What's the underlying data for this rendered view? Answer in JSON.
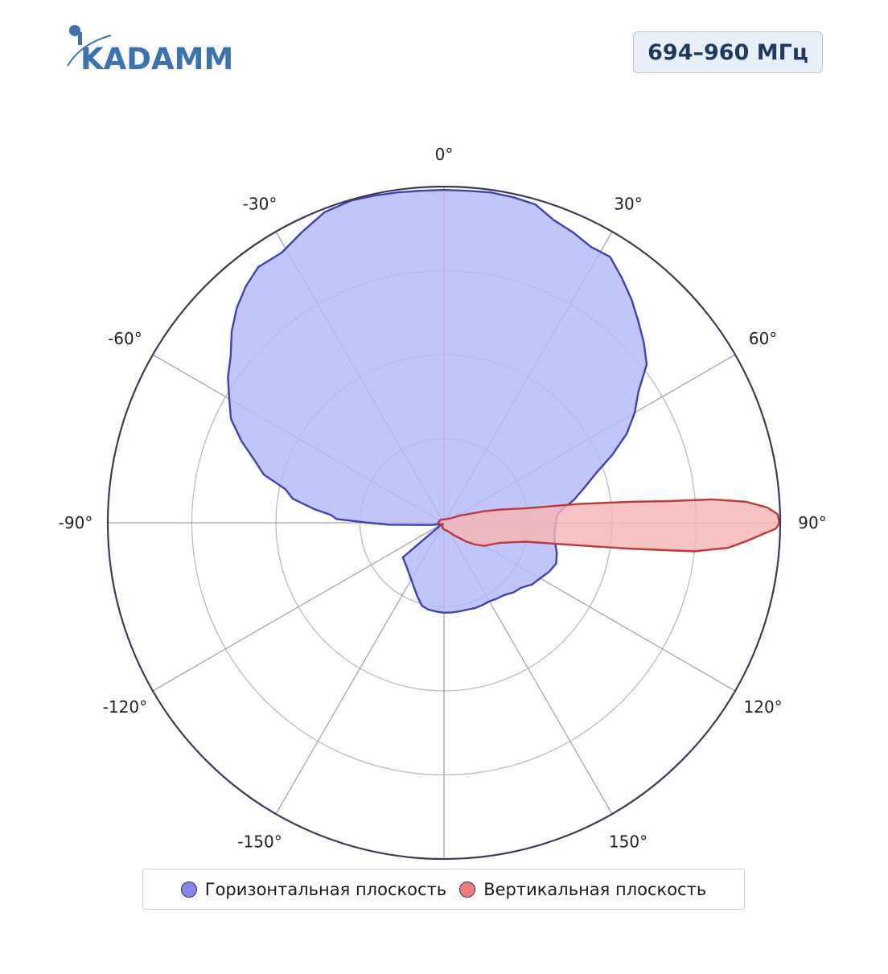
{
  "brand": {
    "logo_text": "KADAMM",
    "logo_color": "#3d72b0"
  },
  "frequency_badge": "694–960 МГц",
  "chart_data": {
    "type": "polar-area",
    "title": "",
    "angle_unit": "deg",
    "angle_direction": "clockwise",
    "zero_at": "top",
    "angle_ticks": [
      0,
      30,
      60,
      90,
      120,
      150,
      180,
      -150,
      -120,
      -90,
      -60,
      -30
    ],
    "angle_tick_labels": [
      "0°",
      "30°",
      "60°",
      "90°",
      "120°",
      "150°",
      "",
      "-150°",
      "-120°",
      "-90°",
      "-60°",
      "-30°"
    ],
    "radial_range": [
      0,
      4
    ],
    "radial_gridlines": [
      1,
      2,
      3,
      4
    ],
    "radial_tick_labels_shown": false,
    "grid": true,
    "legend_position": "bottom",
    "series": [
      {
        "name": "Горизонтальная плоскость",
        "color": "#8585ee",
        "fill": "#b5b8f5",
        "line": "#4040b8",
        "points": [
          [
            -120,
            0.03
          ],
          [
            -100,
            0.15
          ],
          [
            -92,
            0.65
          ],
          [
            -90,
            0.9
          ],
          [
            -88,
            1.28
          ],
          [
            -86,
            1.35
          ],
          [
            -84,
            1.55
          ],
          [
            -81,
            1.82
          ],
          [
            -78,
            1.93
          ],
          [
            -75,
            2.22
          ],
          [
            -72,
            2.36
          ],
          [
            -68,
            2.6
          ],
          [
            -64,
            2.82
          ],
          [
            -60,
            2.95
          ],
          [
            -56,
            3.1
          ],
          [
            -52,
            3.22
          ],
          [
            -48,
            3.4
          ],
          [
            -44,
            3.55
          ],
          [
            -40,
            3.67
          ],
          [
            -36,
            3.76
          ],
          [
            -31,
            3.75
          ],
          [
            -26,
            3.85
          ],
          [
            -21,
            3.96
          ],
          [
            -16,
            3.99
          ],
          [
            -12,
            3.98
          ],
          [
            -8,
            3.97
          ],
          [
            -4,
            3.96
          ],
          [
            0,
            3.96
          ],
          [
            4,
            3.96
          ],
          [
            8,
            3.97
          ],
          [
            12,
            3.96
          ],
          [
            16,
            3.94
          ],
          [
            20,
            3.83
          ],
          [
            24,
            3.78
          ],
          [
            28,
            3.72
          ],
          [
            32,
            3.73
          ],
          [
            36,
            3.6
          ],
          [
            40,
            3.47
          ],
          [
            44,
            3.33
          ],
          [
            48,
            3.2
          ],
          [
            52,
            3.06
          ],
          [
            56,
            2.79
          ],
          [
            60,
            2.62
          ],
          [
            64,
            2.42
          ],
          [
            68,
            2.16
          ],
          [
            72,
            1.9
          ],
          [
            76,
            1.72
          ],
          [
            80,
            1.57
          ],
          [
            84,
            1.4
          ],
          [
            86,
            1.35
          ],
          [
            88,
            1.34
          ],
          [
            90,
            1.33
          ],
          [
            95,
            1.32
          ],
          [
            100,
            1.34
          ],
          [
            105,
            1.39
          ],
          [
            110,
            1.42
          ],
          [
            115,
            1.38
          ],
          [
            120,
            1.32
          ],
          [
            125,
            1.28
          ],
          [
            130,
            1.2
          ],
          [
            135,
            1.17
          ],
          [
            140,
            1.12
          ],
          [
            145,
            1.1
          ],
          [
            150,
            1.08
          ],
          [
            155,
            1.08
          ],
          [
            160,
            1.08
          ],
          [
            165,
            1.07
          ],
          [
            170,
            1.07
          ],
          [
            175,
            1.07
          ],
          [
            180,
            1.07
          ],
          [
            185,
            1.06
          ],
          [
            190,
            1.05
          ],
          [
            195,
            1.02
          ],
          [
            200,
            0.93
          ],
          [
            210,
            0.78
          ],
          [
            220,
            0.69
          ],
          [
            230,
            0.64
          ],
          [
            238,
            0.03
          ]
        ]
      },
      {
        "name": "Вертикальная плоскость",
        "color": "#ee7c7c",
        "fill": "#f5b4b4",
        "line": "#c0383a",
        "points": [
          [
            -135,
            0.02
          ],
          [
            -110,
            0.05
          ],
          [
            -90,
            0.07
          ],
          [
            -70,
            0.06
          ],
          [
            -40,
            0.05
          ],
          [
            0,
            0.04
          ],
          [
            30,
            0.05
          ],
          [
            55,
            0.09
          ],
          [
            65,
            0.2
          ],
          [
            70,
            0.3
          ],
          [
            74,
            0.5
          ],
          [
            77,
            0.7
          ],
          [
            80,
            1.0
          ],
          [
            82,
            1.6
          ],
          [
            83.5,
            2.2
          ],
          [
            84.5,
            2.7
          ],
          [
            85,
            3.2
          ],
          [
            86,
            3.6
          ],
          [
            87.3,
            3.85
          ],
          [
            88.5,
            3.97
          ],
          [
            90,
            3.99
          ],
          [
            91,
            3.95
          ],
          [
            92,
            3.8
          ],
          [
            93.5,
            3.6
          ],
          [
            95,
            3.4
          ],
          [
            96.5,
            3.0
          ],
          [
            98,
            2.2
          ],
          [
            100,
            1.5
          ],
          [
            103,
            1.0
          ],
          [
            110,
            0.7
          ],
          [
            120,
            0.55
          ],
          [
            125,
            0.45
          ],
          [
            130,
            0.35
          ],
          [
            140,
            0.2
          ],
          [
            160,
            0.1
          ],
          [
            180,
            0.08
          ],
          [
            200,
            0.06
          ]
        ]
      }
    ]
  }
}
